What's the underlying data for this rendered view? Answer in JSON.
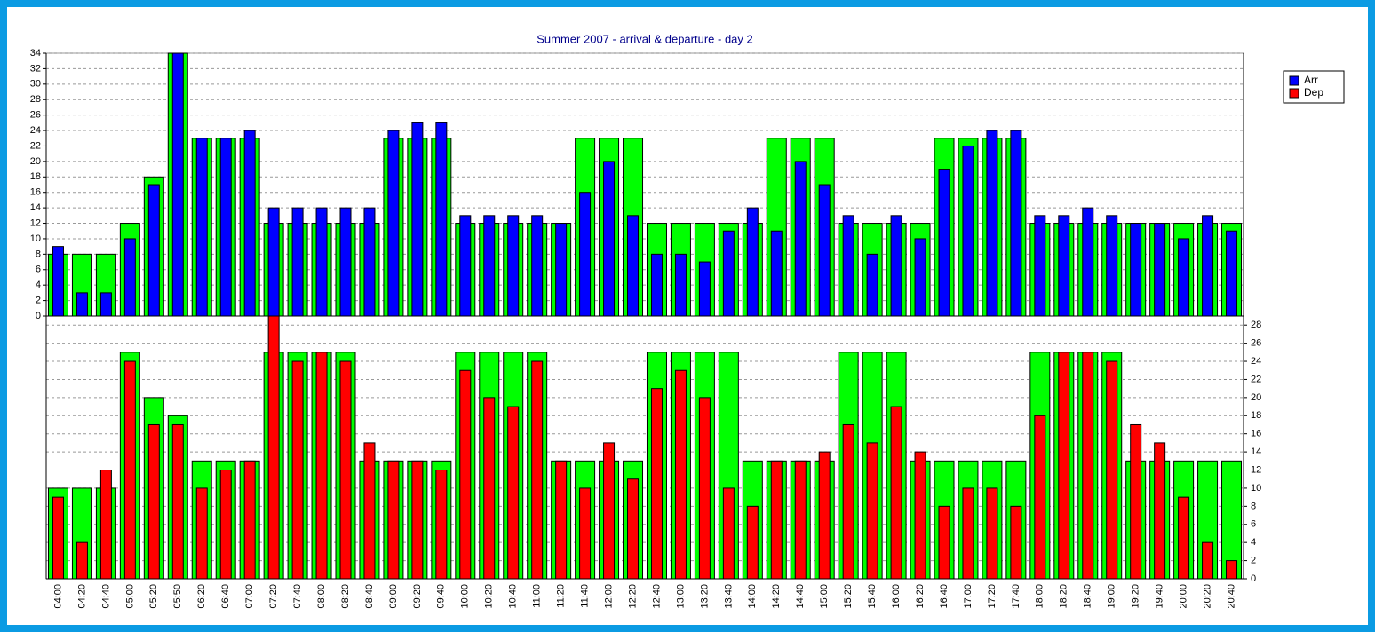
{
  "chart_data": {
    "type": "bar",
    "title": "Summer 2007 - arrival & departure - day 2",
    "categories": [
      "04:00",
      "04:20",
      "04:40",
      "05:00",
      "05:20",
      "05:50",
      "06:20",
      "06:40",
      "07:00",
      "07:20",
      "07:40",
      "08:00",
      "08:20",
      "08:40",
      "09:00",
      "09:20",
      "09:40",
      "10:00",
      "10:20",
      "10:40",
      "11:00",
      "11:20",
      "11:40",
      "12:00",
      "12:20",
      "12:40",
      "13:00",
      "13:20",
      "13:40",
      "14:00",
      "14:20",
      "14:40",
      "15:00",
      "15:20",
      "15:40",
      "16:00",
      "16:20",
      "16:40",
      "17:00",
      "17:20",
      "17:40",
      "18:00",
      "18:20",
      "18:40",
      "19:00",
      "19:20",
      "19:40",
      "20:00",
      "20:20",
      "20:40"
    ],
    "series": [
      {
        "name": "Arr",
        "color": "#0000ff",
        "values": [
          9,
          3,
          3,
          10,
          17,
          34,
          23,
          23,
          24,
          14,
          14,
          14,
          14,
          14,
          24,
          25,
          25,
          13,
          13,
          13,
          13,
          12,
          16,
          20,
          13,
          8,
          8,
          7,
          11,
          14,
          11,
          20,
          17,
          13,
          8,
          13,
          10,
          19,
          22,
          24,
          24,
          13,
          13,
          14,
          13,
          12,
          12,
          10,
          13,
          11
        ]
      },
      {
        "name": "Dep",
        "color": "#ff0000",
        "axis": "y2",
        "values": [
          9,
          4,
          12,
          24,
          17,
          17,
          10,
          12,
          13,
          29,
          24,
          25,
          24,
          15,
          13,
          13,
          12,
          23,
          20,
          19,
          24,
          13,
          10,
          15,
          11,
          21,
          23,
          20,
          10,
          8,
          13,
          13,
          14,
          17,
          15,
          19,
          14,
          8,
          10,
          10,
          8,
          18,
          25,
          25,
          24,
          17,
          15,
          9,
          4,
          2
        ]
      },
      {
        "color": "#00ff00",
        "values": [
          8,
          8,
          8,
          12,
          18,
          34,
          23,
          23,
          23,
          12,
          12,
          12,
          12,
          12,
          23,
          23,
          23,
          12,
          12,
          12,
          12,
          12,
          23,
          23,
          23,
          12,
          12,
          12,
          12,
          12,
          23,
          23,
          23,
          12,
          12,
          12,
          12,
          23,
          23,
          23,
          23,
          12,
          12,
          12,
          12,
          12,
          12,
          12,
          12,
          12
        ]
      },
      {
        "color": "#00ff00",
        "axis": "y2",
        "values": [
          10,
          10,
          10,
          25,
          20,
          18,
          13,
          13,
          13,
          25,
          25,
          25,
          25,
          13,
          13,
          13,
          13,
          25,
          25,
          25,
          25,
          13,
          13,
          13,
          13,
          25,
          25,
          25,
          25,
          13,
          13,
          13,
          13,
          25,
          25,
          25,
          13,
          13,
          13,
          13,
          13,
          25,
          25,
          25,
          25,
          13,
          13,
          13,
          13,
          13
        ]
      }
    ],
    "ylim": [
      0,
      34
    ],
    "yticks": [
      0,
      2,
      4,
      6,
      8,
      10,
      12,
      14,
      16,
      18,
      20,
      22,
      24,
      26,
      28,
      30,
      32,
      34
    ],
    "y2lim": [
      0,
      29
    ],
    "y2ticks": [
      0,
      2,
      4,
      6,
      8,
      10,
      12,
      14,
      16,
      18,
      20,
      22,
      24,
      26,
      28
    ],
    "grid": true
  }
}
